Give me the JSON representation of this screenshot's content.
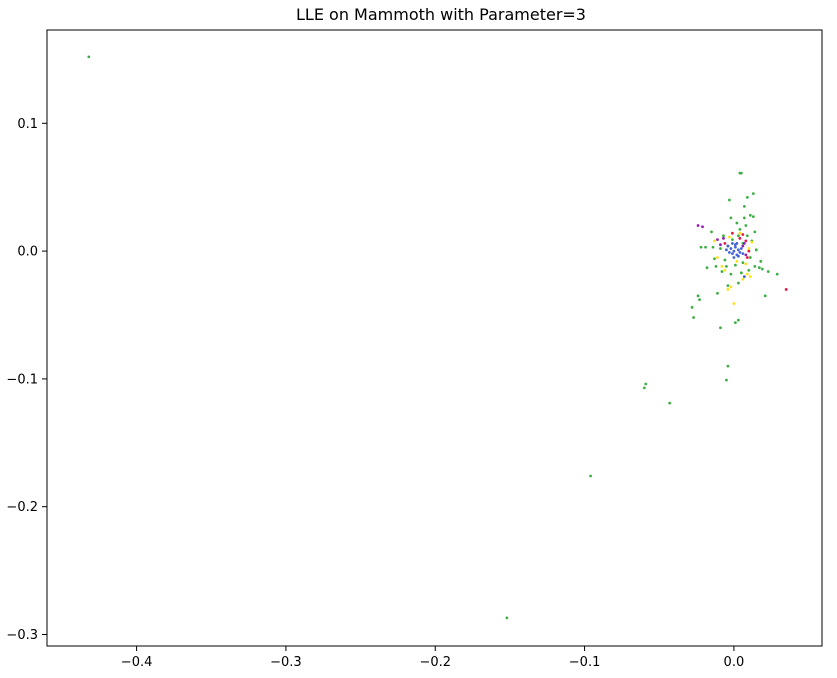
{
  "chart_data": {
    "type": "scatter",
    "title": "LLE on Mammoth with Parameter=3",
    "xlabel": "",
    "ylabel": "",
    "xlim": [
      -0.46,
      0.059
    ],
    "ylim": [
      -0.309,
      0.173
    ],
    "xticks": [
      -0.4,
      -0.3,
      -0.2,
      -0.1,
      0.0
    ],
    "xtick_labels": [
      "−0.4",
      "−0.3",
      "−0.2",
      "−0.1",
      "0.0"
    ],
    "yticks": [
      -0.3,
      -0.2,
      -0.1,
      0.0,
      0.1
    ],
    "ytick_labels": [
      "−0.3",
      "−0.2",
      "−0.1",
      "0.0",
      "0.1"
    ],
    "grid": false,
    "series": [
      {
        "color": "#3cb043",
        "points": [
          [
            -0.432,
            0.152
          ],
          [
            -0.152,
            -0.287
          ],
          [
            -0.096,
            -0.176
          ],
          [
            -0.043,
            -0.119
          ],
          [
            -0.06,
            -0.107
          ],
          [
            -0.059,
            -0.104
          ],
          [
            -0.004,
            -0.09
          ],
          [
            -0.005,
            -0.101
          ],
          [
            -0.009,
            -0.06
          ],
          [
            -0.028,
            -0.044
          ],
          [
            -0.027,
            -0.052
          ],
          [
            -0.024,
            -0.035
          ],
          [
            -0.023,
            -0.038
          ],
          [
            0.003,
            -0.054
          ],
          [
            0.001,
            -0.056
          ],
          [
            -0.011,
            -0.033
          ],
          [
            -0.004,
            -0.027
          ],
          [
            0.004,
            0.061
          ],
          [
            0.005,
            0.061
          ],
          [
            0.013,
            0.045
          ],
          [
            0.009,
            0.042
          ],
          [
            0.007,
            0.035
          ],
          [
            0.011,
            0.028
          ],
          [
            0.013,
            0.027
          ],
          [
            -0.003,
            0.04
          ],
          [
            0.023,
            -0.016
          ],
          [
            0.021,
            -0.035
          ],
          [
            0.029,
            -0.018
          ],
          [
            0.019,
            -0.014
          ],
          [
            0.014,
            -0.012
          ],
          [
            -0.012,
            -0.012
          ],
          [
            -0.018,
            -0.013
          ],
          [
            -0.022,
            0.003
          ],
          [
            -0.019,
            0.003
          ],
          [
            -0.014,
            0.003
          ],
          [
            0.015,
            0.001
          ],
          [
            0.011,
            -0.005
          ],
          [
            0.006,
            -0.009
          ],
          [
            -0.006,
            -0.007
          ],
          [
            -0.008,
            -0.016
          ],
          [
            0.004,
            0.017
          ],
          [
            0.002,
            0.022
          ],
          [
            -0.002,
            0.026
          ],
          [
            0.007,
            0.026
          ],
          [
            -0.007,
            0.012
          ],
          [
            0.009,
            0.012
          ],
          [
            0.01,
            -0.015
          ],
          [
            -0.002,
            -0.018
          ],
          [
            0.003,
            -0.025
          ],
          [
            -0.013,
            -0.006
          ],
          [
            0.018,
            -0.008
          ],
          [
            0.017,
            -0.013
          ],
          [
            -0.001,
            0.009
          ],
          [
            0.001,
            -0.011
          ],
          [
            0.006,
            0.006
          ],
          [
            -0.004,
            0.004
          ],
          [
            0.012,
            0.008
          ],
          [
            -0.009,
            0.002
          ],
          [
            0.003,
            0.012
          ],
          [
            0.005,
            -0.017
          ],
          [
            -0.015,
            0.015
          ],
          [
            0.008,
            0.02
          ],
          [
            -0.005,
            -0.012
          ],
          [
            0.014,
            0.015
          ]
        ]
      },
      {
        "color": "#ffe119",
        "points": [
          [
            0.0,
            -0.041
          ],
          [
            -0.004,
            -0.03
          ],
          [
            -0.002,
            -0.028
          ],
          [
            0.011,
            -0.02
          ],
          [
            0.009,
            -0.018
          ],
          [
            -0.008,
            -0.012
          ],
          [
            -0.006,
            -0.015
          ],
          [
            0.008,
            -0.01
          ],
          [
            0.006,
            -0.022
          ],
          [
            -0.011,
            -0.005
          ],
          [
            -0.013,
            0.008
          ],
          [
            0.012,
            0.007
          ],
          [
            0.004,
            0.014
          ],
          [
            -0.003,
            0.011
          ],
          [
            0.01,
            0.002
          ],
          [
            0.002,
            -0.008
          ]
        ]
      },
      {
        "color": "#e6194b",
        "points": [
          [
            0.035,
            -0.03
          ],
          [
            0.009,
            -0.005
          ],
          [
            0.006,
            0.013
          ],
          [
            0.004,
            0.01
          ],
          [
            -0.001,
            0.014
          ],
          [
            0.008,
            0.008
          ],
          [
            0.01,
            0.0
          ],
          [
            -0.006,
            0.006
          ]
        ]
      },
      {
        "color": "#911eb4",
        "points": [
          [
            -0.024,
            0.02
          ],
          [
            -0.021,
            0.019
          ],
          [
            -0.011,
            0.009
          ],
          [
            -0.009,
            0.005
          ],
          [
            0.006,
            0.004
          ],
          [
            0.008,
            -0.003
          ],
          [
            0.007,
            0.006
          ],
          [
            -0.007,
            0.01
          ]
        ]
      },
      {
        "color": "#4363d8",
        "points": [
          [
            0.0,
            0.0
          ],
          [
            0.001,
            0.003
          ],
          [
            -0.001,
            -0.002
          ],
          [
            0.002,
            -0.003
          ],
          [
            0.003,
            0.001
          ],
          [
            -0.002,
            0.002
          ],
          [
            0.004,
            -0.001
          ],
          [
            -0.003,
            -0.001
          ],
          [
            0.001,
            0.005
          ],
          [
            0.0,
            -0.005
          ],
          [
            0.005,
            0.002
          ],
          [
            -0.004,
            0.004
          ],
          [
            0.002,
            0.006
          ],
          [
            0.003,
            -0.004
          ],
          [
            -0.001,
            0.006
          ],
          [
            0.006,
            -0.002
          ],
          [
            0.007,
            -0.02
          ],
          [
            -0.005,
            0.001
          ]
        ]
      }
    ]
  }
}
